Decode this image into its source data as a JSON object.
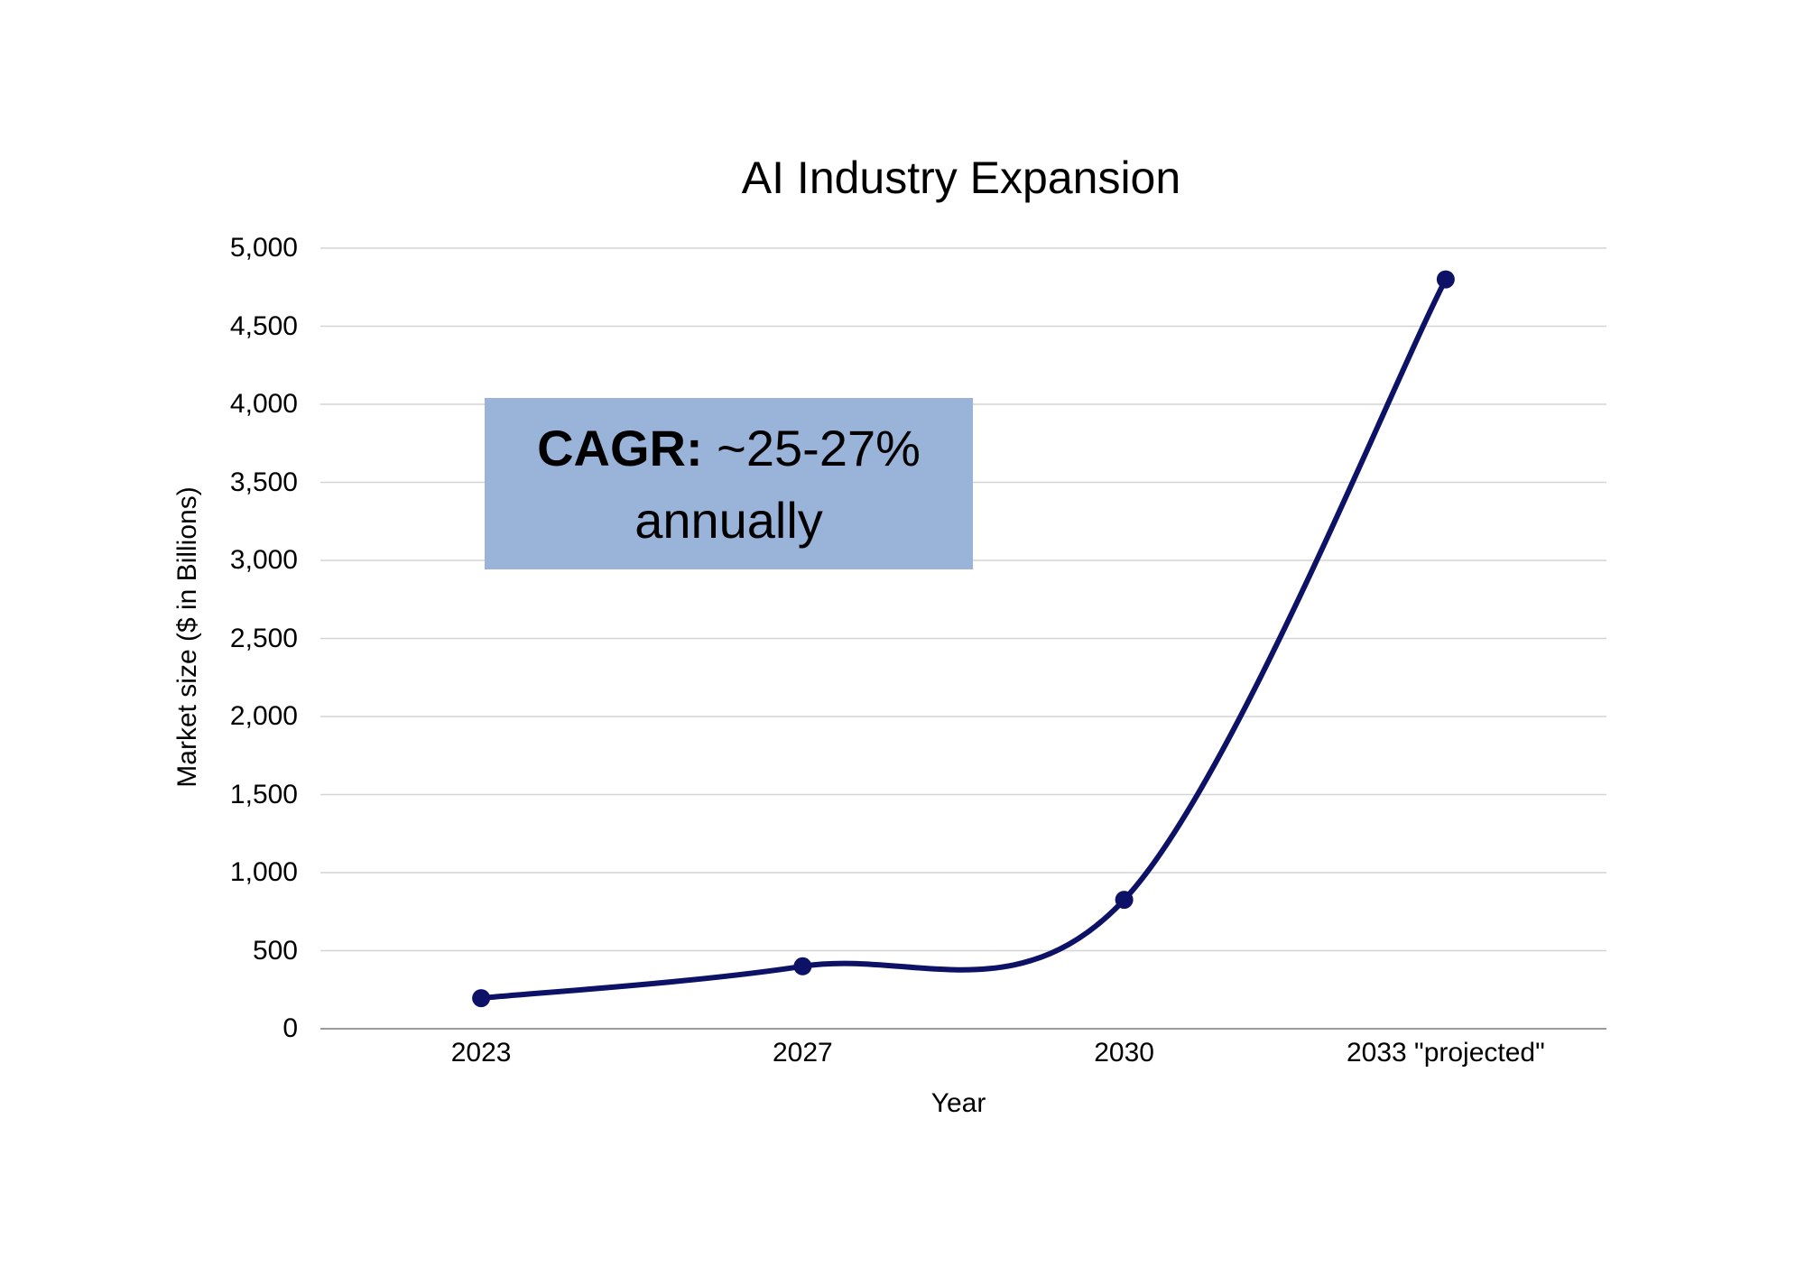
{
  "chart_data": {
    "type": "line",
    "title": "AI Industry Expansion",
    "xlabel": "Year",
    "ylabel": "Market size ($ in Billions)",
    "categories": [
      "2023",
      "2027",
      "2030",
      "2033 \"projected\""
    ],
    "series": [
      {
        "values": [
          196,
          400,
          826,
          4800
        ],
        "color": "#0d1266"
      }
    ],
    "ylim": [
      0,
      5000
    ],
    "yticks": [
      0,
      500,
      1000,
      1500,
      2000,
      2500,
      3000,
      3500,
      4000,
      4500,
      5000
    ],
    "ytick_labels": [
      "0",
      "500",
      "1,000",
      "1,500",
      "2,000",
      "2,500",
      "3,000",
      "3,500",
      "4,000",
      "4,500",
      "5,000"
    ],
    "grid": true,
    "smooth": true,
    "annotation": {
      "bold": "CAGR:",
      "text": " ~25-27%",
      "line2": "annually",
      "background": "#9ab3d9"
    }
  }
}
